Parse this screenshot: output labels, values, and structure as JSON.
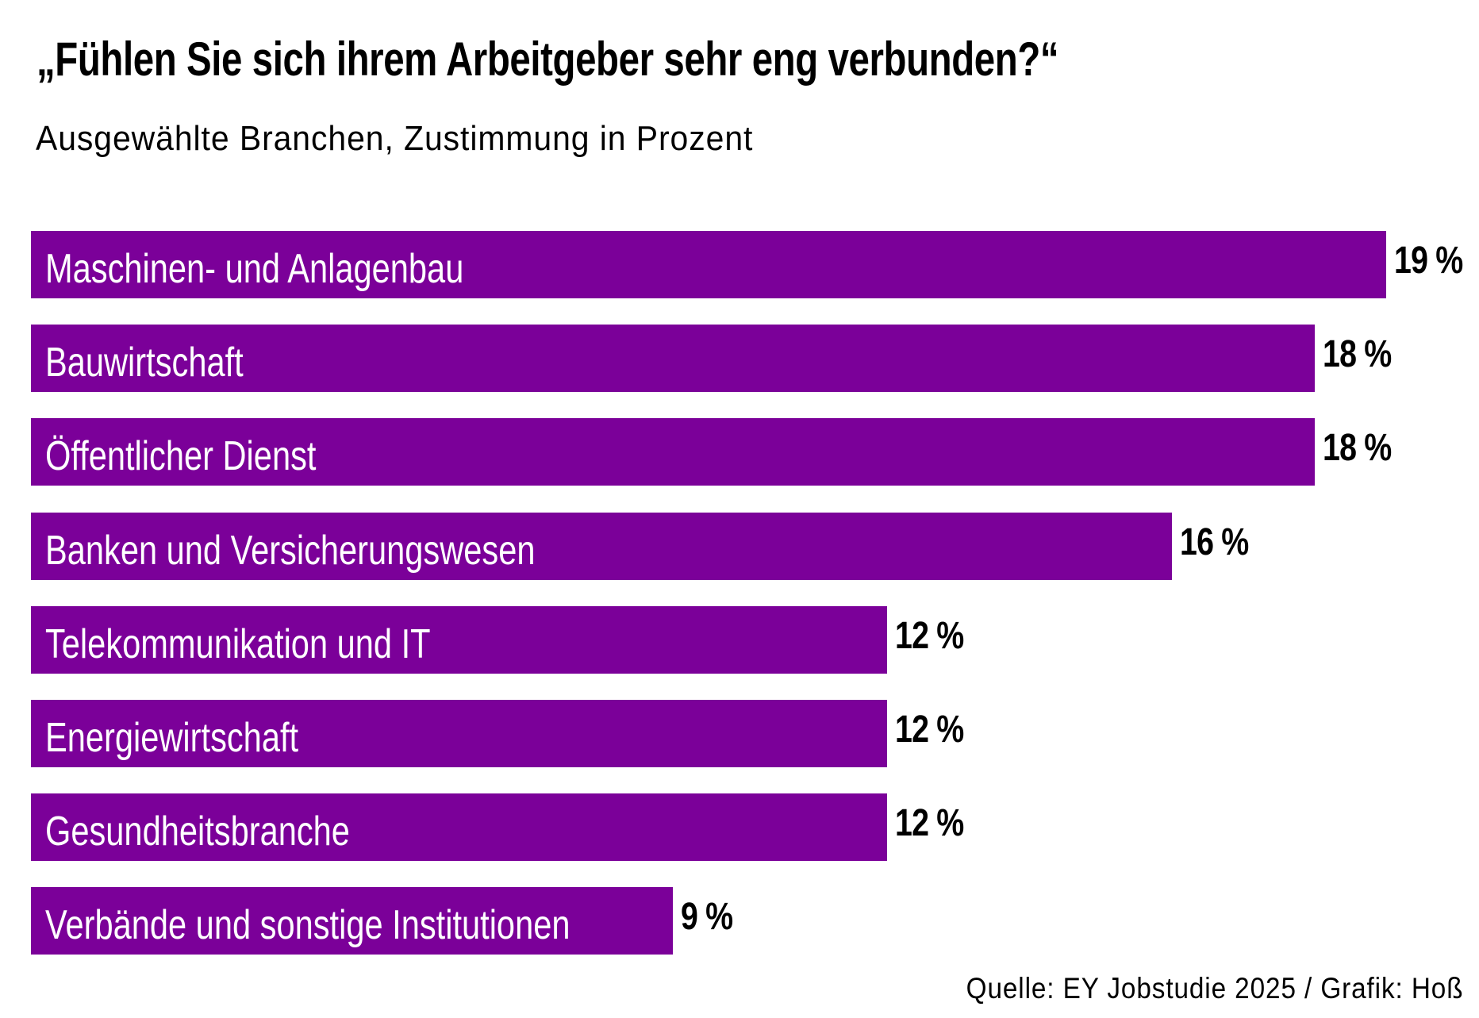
{
  "chart_data": {
    "type": "bar",
    "orientation": "horizontal",
    "title": "„Fühlen Sie sich ihrem Arbeitgeber sehr eng verbunden?“",
    "subtitle": "Ausgewählte Branchen, Zustimmung in Prozent",
    "categories": [
      "Maschinen- und Anlagenbau",
      "Bauwirtschaft",
      "Öffentlicher Dienst",
      "Banken und Versicherungswesen",
      "Telekommunikation und IT",
      "Energiewirtschaft",
      "Gesundheitsbranche",
      "Verbände und sonstige Institutionen"
    ],
    "values": [
      19,
      18,
      18,
      16,
      12,
      12,
      12,
      9
    ],
    "value_labels": [
      "19 %",
      "18 %",
      "18 %",
      "16 %",
      "12 %",
      "12 %",
      "12 %",
      "9 %"
    ],
    "unit": "%",
    "grid": false,
    "bar_color": "#7b0099",
    "source": "Quelle: EY Jobstudie 2025 / Grafik: Hoß"
  }
}
